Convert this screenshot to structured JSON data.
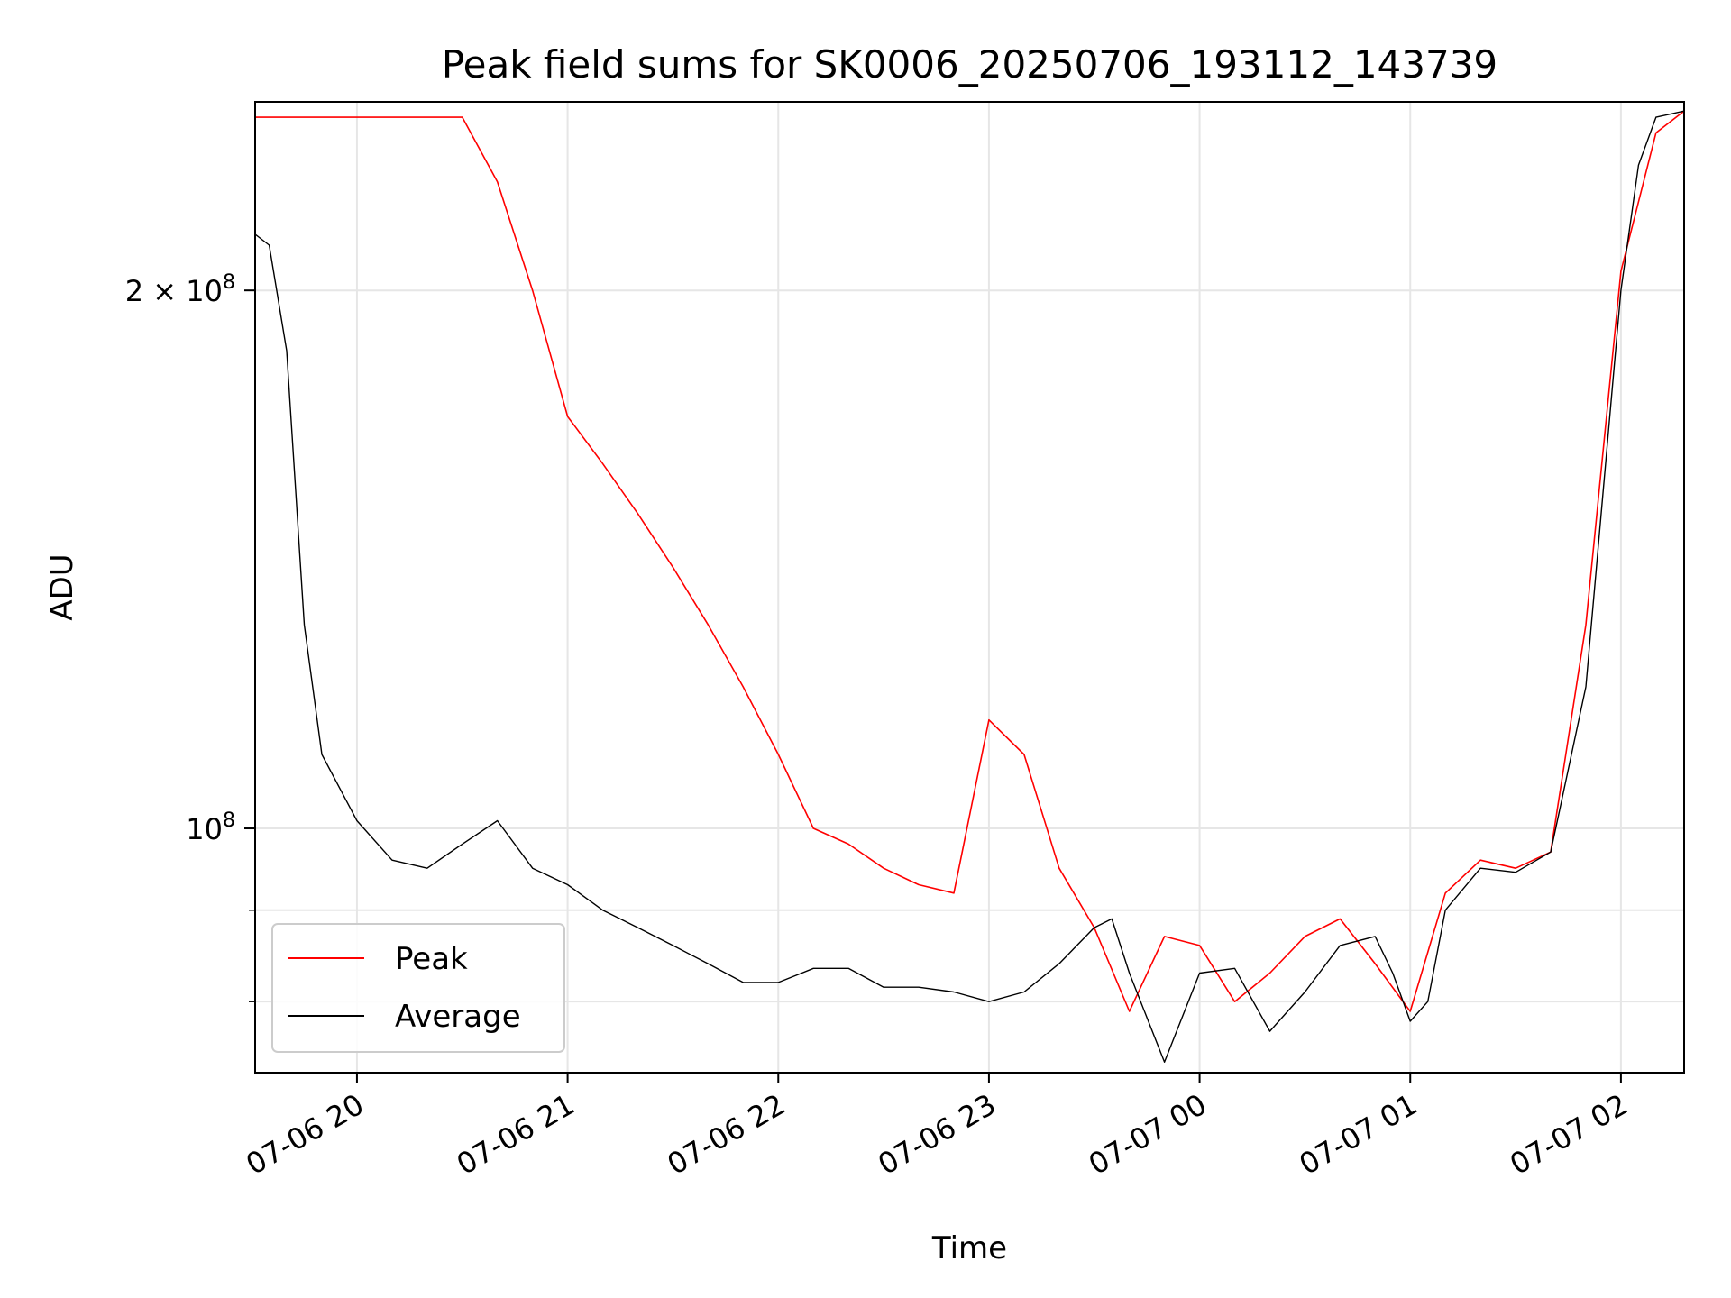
{
  "chart_data": {
    "type": "line",
    "title": "Peak field sums for SK0006_20250706_193112_143739",
    "xlabel": "Time",
    "ylabel": "ADU",
    "y_scale": "log",
    "ylim": [
      73000000,
      255000000
    ],
    "xlim": [
      "2025-07-06 19:31",
      "2025-07-07 02:18"
    ],
    "x_ticks": [
      {
        "time": "2025-07-06 20:00",
        "label": "07-06 20"
      },
      {
        "time": "2025-07-06 21:00",
        "label": "07-06 21"
      },
      {
        "time": "2025-07-06 22:00",
        "label": "07-06 22"
      },
      {
        "time": "2025-07-06 23:00",
        "label": "07-06 23"
      },
      {
        "time": "2025-07-07 00:00",
        "label": "07-07 00"
      },
      {
        "time": "2025-07-07 01:00",
        "label": "07-07 01"
      },
      {
        "time": "2025-07-07 02:00",
        "label": "07-07 02"
      }
    ],
    "y_major_ticks": [
      {
        "value": 100000000,
        "base": "10",
        "exp": "8",
        "mant": ""
      },
      {
        "value": 200000000,
        "base": "10",
        "exp": "8",
        "mant": "2 × "
      }
    ],
    "y_minor_ticks": [
      80000000,
      90000000
    ],
    "grid": true,
    "legend": {
      "position": "lower-left",
      "entries": [
        "Peak",
        "Average"
      ]
    },
    "series": [
      {
        "name": "Peak",
        "color": "#ff0000",
        "x": [
          "2025-07-06 19:31",
          "2025-07-06 19:40",
          "2025-07-06 19:50",
          "2025-07-06 20:00",
          "2025-07-06 20:10",
          "2025-07-06 20:20",
          "2025-07-06 20:30",
          "2025-07-06 20:40",
          "2025-07-06 20:50",
          "2025-07-06 21:00",
          "2025-07-06 21:10",
          "2025-07-06 21:20",
          "2025-07-06 21:30",
          "2025-07-06 21:40",
          "2025-07-06 21:50",
          "2025-07-06 22:00",
          "2025-07-06 22:10",
          "2025-07-06 22:20",
          "2025-07-06 22:30",
          "2025-07-06 22:40",
          "2025-07-06 22:50",
          "2025-07-06 23:00",
          "2025-07-06 23:10",
          "2025-07-06 23:20",
          "2025-07-06 23:30",
          "2025-07-06 23:40",
          "2025-07-06 23:50",
          "2025-07-07 00:00",
          "2025-07-07 00:10",
          "2025-07-07 00:20",
          "2025-07-07 00:30",
          "2025-07-07 00:40",
          "2025-07-07 00:50",
          "2025-07-07 01:00",
          "2025-07-07 01:10",
          "2025-07-07 01:20",
          "2025-07-07 01:30",
          "2025-07-07 01:40",
          "2025-07-07 01:50",
          "2025-07-07 02:00",
          "2025-07-07 02:10",
          "2025-07-07 02:18"
        ],
        "y": [
          250000000,
          250000000,
          250000000,
          250000000,
          250000000,
          250000000,
          250000000,
          230000000,
          200000000,
          170000000,
          160000000,
          150000000,
          140000000,
          130000000,
          120000000,
          110000000,
          100000000,
          98000000,
          95000000,
          93000000,
          92000000,
          115000000,
          110000000,
          95000000,
          88000000,
          79000000,
          87000000,
          86000000,
          80000000,
          83000000,
          87000000,
          89000000,
          84000000,
          79000000,
          92000000,
          96000000,
          95000000,
          97000000,
          130000000,
          205000000,
          245000000,
          252000000
        ]
      },
      {
        "name": "Average",
        "color": "#000000",
        "x": [
          "2025-07-06 19:31",
          "2025-07-06 19:35",
          "2025-07-06 19:40",
          "2025-07-06 19:45",
          "2025-07-06 19:50",
          "2025-07-06 20:00",
          "2025-07-06 20:10",
          "2025-07-06 20:20",
          "2025-07-06 20:30",
          "2025-07-06 20:40",
          "2025-07-06 20:50",
          "2025-07-06 21:00",
          "2025-07-06 21:10",
          "2025-07-06 21:20",
          "2025-07-06 21:30",
          "2025-07-06 21:40",
          "2025-07-06 21:50",
          "2025-07-06 22:00",
          "2025-07-06 22:10",
          "2025-07-06 22:20",
          "2025-07-06 22:30",
          "2025-07-06 22:40",
          "2025-07-06 22:50",
          "2025-07-06 23:00",
          "2025-07-06 23:10",
          "2025-07-06 23:20",
          "2025-07-06 23:30",
          "2025-07-06 23:35",
          "2025-07-06 23:40",
          "2025-07-06 23:50",
          "2025-07-07 00:00",
          "2025-07-07 00:10",
          "2025-07-07 00:20",
          "2025-07-07 00:30",
          "2025-07-07 00:40",
          "2025-07-07 00:50",
          "2025-07-07 00:55",
          "2025-07-07 01:00",
          "2025-07-07 01:05",
          "2025-07-07 01:10",
          "2025-07-07 01:20",
          "2025-07-07 01:30",
          "2025-07-07 01:40",
          "2025-07-07 01:50",
          "2025-07-07 02:00",
          "2025-07-07 02:05",
          "2025-07-07 02:10",
          "2025-07-07 02:18"
        ],
        "y": [
          215000000,
          212000000,
          185000000,
          130000000,
          110000000,
          101000000,
          96000000,
          95000000,
          98000000,
          101000000,
          95000000,
          93000000,
          90000000,
          88000000,
          86000000,
          84000000,
          82000000,
          82000000,
          83500000,
          83500000,
          81500000,
          81500000,
          81000000,
          80000000,
          81000000,
          84000000,
          88000000,
          89000000,
          83000000,
          74000000,
          83000000,
          83500000,
          77000000,
          81000000,
          86000000,
          87000000,
          83000000,
          78000000,
          80000000,
          90000000,
          95000000,
          94500000,
          97000000,
          120000000,
          200000000,
          235000000,
          250000000,
          252000000
        ]
      }
    ]
  }
}
